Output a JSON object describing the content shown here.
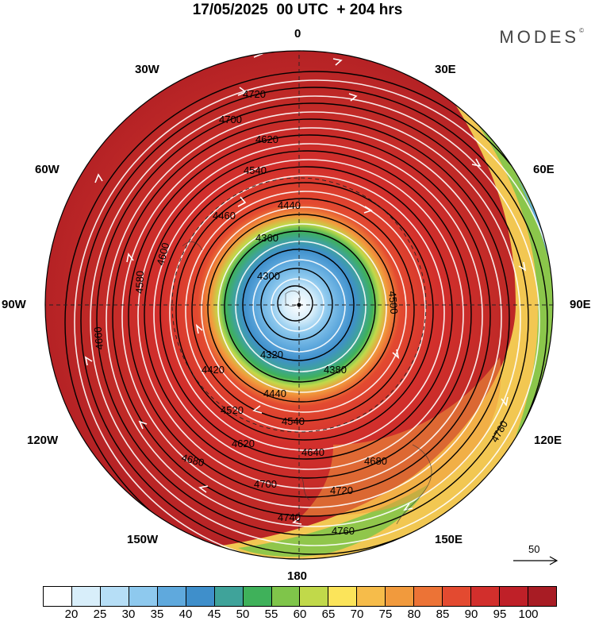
{
  "title": "17/05/2025  00 UTC  + 204 hrs",
  "brand": "MODES",
  "brand_mark": "©",
  "longitude_labels": {
    "top": "0",
    "top_left": "30W",
    "top_right": "30E",
    "upper_left": "60W",
    "upper_right": "60E",
    "left": "90W",
    "right": "90E",
    "lower_left": "120W",
    "lower_right": "120E",
    "bottom_left": "150W",
    "bottom_right": "150E",
    "bottom": "180"
  },
  "reference_vector": {
    "value": "50"
  },
  "contour_labels": [
    "4720",
    "4700",
    "4620",
    "4540",
    "4460",
    "4440",
    "4360",
    "4300",
    "4320",
    "4380",
    "4420",
    "4440",
    "4520",
    "4540",
    "4620",
    "4640",
    "4680",
    "4700",
    "4720",
    "4740",
    "4760",
    "4780",
    "4600",
    "4500",
    "4580",
    "4660",
    "4680"
  ],
  "legend": {
    "colors": [
      "#ffffff",
      "#d8eefa",
      "#b6def6",
      "#8ec9ee",
      "#5fa9dd",
      "#3f8fcb",
      "#3fa39a",
      "#3fb15a",
      "#7fc54a",
      "#c1d94a",
      "#fbe45a",
      "#f6bc4a",
      "#f19a3d",
      "#ec7336",
      "#e34a30",
      "#d22f2c",
      "#bf2028",
      "#a81c24"
    ],
    "labels": [
      "20",
      "25",
      "30",
      "35",
      "40",
      "45",
      "50",
      "55",
      "60",
      "65",
      "70",
      "75",
      "80",
      "85",
      "90",
      "95",
      "100"
    ]
  }
}
